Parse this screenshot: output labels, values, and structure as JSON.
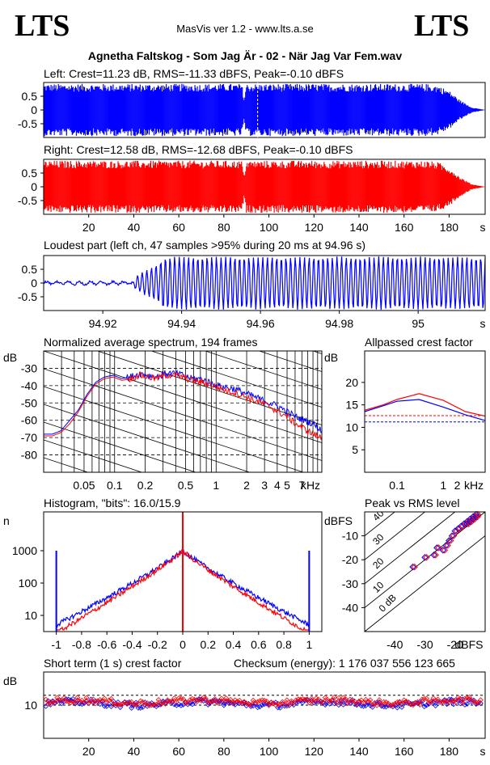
{
  "header": {
    "logo_left": "LTS",
    "logo_right": "LTS",
    "app": "MasVis ver 1.2 - www.lts.a.se",
    "file": "Agnetha Faltskog - Som Jag Är - 02 - När Jag Var Fem.wav"
  },
  "colors": {
    "left": "#0000ff",
    "right": "#ff0000",
    "grid": "#000000"
  },
  "chart_data": [
    {
      "id": "left",
      "type": "area",
      "title": "Left: Crest=11.23 dB, RMS=-11.33 dBFS, Peak=-0.10 dBFS",
      "ylim": [
        -1,
        1
      ],
      "yticks": [
        "0.5",
        "0",
        "-0.5"
      ],
      "xlim": [
        0,
        196
      ],
      "envelope_x": [
        0,
        20,
        40,
        60,
        80,
        88,
        89,
        90,
        100,
        120,
        140,
        160,
        170,
        175,
        180,
        185,
        190,
        196
      ],
      "envelope_peak": [
        0.95,
        0.95,
        0.95,
        0.95,
        0.95,
        0.95,
        0.4,
        0.95,
        0.95,
        0.95,
        0.95,
        0.95,
        0.95,
        0.9,
        0.7,
        0.35,
        0.1,
        0.0
      ],
      "marker_x": 95
    },
    {
      "id": "right",
      "type": "area",
      "title": "Right: Crest=12.58 dB, RMS=-12.68 dBFS, Peak=-0.10 dBFS",
      "ylim": [
        -1,
        1
      ],
      "yticks": [
        "0.5",
        "0",
        "-0.5"
      ],
      "xlim": [
        0,
        196
      ],
      "xticks": [
        "20",
        "40",
        "60",
        "80",
        "100",
        "120",
        "140",
        "160",
        "180"
      ],
      "xunit": "s",
      "envelope_x": [
        0,
        20,
        40,
        60,
        80,
        88,
        89,
        90,
        100,
        120,
        140,
        160,
        170,
        175,
        180,
        185,
        190,
        196
      ],
      "envelope_peak": [
        0.95,
        0.95,
        0.95,
        0.95,
        0.95,
        0.95,
        0.4,
        0.95,
        0.95,
        0.95,
        0.95,
        0.95,
        0.95,
        0.9,
        0.7,
        0.35,
        0.1,
        0.0
      ]
    },
    {
      "id": "loudest",
      "type": "line",
      "title": "Loudest part (left  ch, 47 samples >95% during 20 ms at 94.96 s)",
      "ylim": [
        -1,
        1
      ],
      "yticks": [
        "0.5",
        "0",
        "-0.5"
      ],
      "xlim": [
        94.905,
        95.017
      ],
      "xticks": [
        "94.92",
        "94.94",
        "94.96",
        "94.98",
        "95"
      ],
      "xunit": "s"
    },
    {
      "id": "spectrum",
      "type": "line",
      "title": "Normalized average spectrum, 194 frames",
      "ylabel": "dB",
      "yticks": [
        "-30",
        "-40",
        "-50",
        "-60",
        "-70",
        "-80"
      ],
      "ylim": [
        -90,
        -20
      ],
      "xticks": [
        "0.05",
        "0.1",
        "0.2",
        "0.5",
        "1",
        "2",
        "3",
        "4",
        "5",
        "7"
      ],
      "xunit": "kHz",
      "series_left_db": [
        -68,
        -68,
        -66,
        -60,
        -54,
        -45,
        -38,
        -35,
        -34,
        -36,
        -35,
        -33,
        -34,
        -35,
        -33,
        -33,
        -34,
        -36,
        -36,
        -38,
        -40,
        -41,
        -42,
        -44,
        -46,
        -48,
        -50,
        -52,
        -55,
        -58,
        -60,
        -62,
        -66
      ],
      "series_right_db": [
        -69,
        -69,
        -67,
        -62,
        -55,
        -46,
        -39,
        -36,
        -35,
        -37,
        -36,
        -34,
        -35,
        -36,
        -34,
        -34,
        -35,
        -37,
        -38,
        -39,
        -41,
        -43,
        -44,
        -46,
        -48,
        -50,
        -52,
        -55,
        -58,
        -62,
        -65,
        -68,
        -70
      ]
    },
    {
      "id": "allpassed",
      "type": "line",
      "title": "Allpassed crest factor",
      "ylabel": "dB",
      "yticks": [
        "20",
        "15",
        "10",
        "5"
      ],
      "ylim": [
        0,
        27
      ],
      "xticks": [
        "0.1",
        "1",
        "2"
      ],
      "xunit": "kHz",
      "left_x": [
        0.02,
        0.05,
        0.1,
        0.3,
        1,
        3,
        8
      ],
      "left_y": [
        13.5,
        14.8,
        15.8,
        16.2,
        14.5,
        12.8,
        11.5
      ],
      "right_y": [
        13.8,
        15.0,
        16.2,
        17.5,
        16.0,
        13.5,
        12.5
      ],
      "left_ref": 11.2,
      "right_ref": 12.6
    },
    {
      "id": "histogram",
      "type": "line",
      "title": "Histogram, \"bits\": 16.0/15.9",
      "ylabel": "n",
      "yticks": [
        "1000",
        "100",
        "10"
      ],
      "xticks": [
        "-1",
        "-0.8",
        "-0.6",
        "-0.4",
        "-0.2",
        "0",
        "0.2",
        "0.4",
        "0.6",
        "0.8",
        "1"
      ],
      "xlim": [
        -1.1,
        1.1
      ]
    },
    {
      "id": "peakrms",
      "type": "scatter",
      "title": "Peak vs RMS level",
      "ylabel": "dBFS",
      "yticks": [
        "-10",
        "-20",
        "-30",
        "-40"
      ],
      "xticks": [
        "-40",
        "-30",
        "-20"
      ],
      "xunit": "dBFS",
      "diag_labels": [
        "40",
        "30",
        "20",
        "10",
        "0 dB"
      ],
      "xlim": [
        -50,
        -10
      ],
      "ylim": [
        -50,
        0
      ],
      "points_x": [
        -34,
        -30,
        -27,
        -26,
        -24,
        -23,
        -22,
        -21,
        -20,
        -19,
        -18,
        -17,
        -16,
        -16,
        -15,
        -15,
        -14,
        -14,
        -13,
        -13
      ],
      "points_y": [
        -23,
        -19,
        -18,
        -15,
        -16,
        -14,
        -12,
        -10,
        -8,
        -7,
        -6,
        -5,
        -5,
        -4,
        -4,
        -3,
        -3,
        -2,
        -2,
        -1
      ]
    },
    {
      "id": "shortterm",
      "type": "scatter",
      "title": "Short term (1 s) crest factor",
      "checksum": "Checksum (energy):  1 176 037 556 123 665",
      "ylabel": "dB",
      "yticks": [
        "10"
      ],
      "xticks": [
        "20",
        "40",
        "60",
        "80",
        "100",
        "120",
        "140",
        "160",
        "180"
      ],
      "xunit": "s",
      "xlim": [
        0,
        196
      ],
      "ylim": [
        0,
        20
      ]
    }
  ]
}
